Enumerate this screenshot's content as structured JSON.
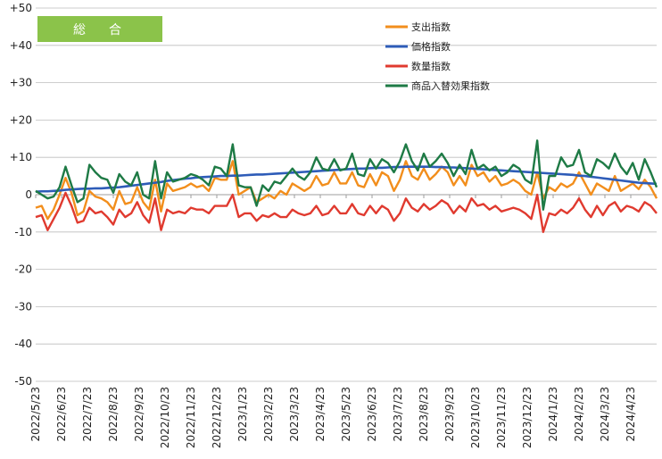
{
  "badge": {
    "label": "総　合",
    "color": "#8BC34A"
  },
  "chart_data": {
    "type": "line",
    "title": "",
    "xlabel": "",
    "ylabel": "",
    "ylim": [
      -50,
      50
    ],
    "grid": "horizontal",
    "legend_position": "top-right",
    "y_ticks": [
      {
        "value": 50,
        "label": "+50"
      },
      {
        "value": 40,
        "label": "+40"
      },
      {
        "value": 30,
        "label": "+30"
      },
      {
        "value": 20,
        "label": "+20"
      },
      {
        "value": 10,
        "label": "+10"
      },
      {
        "value": 0,
        "label": "0"
      },
      {
        "value": -10,
        "label": "-10"
      },
      {
        "value": -20,
        "label": "-20"
      },
      {
        "value": -30,
        "label": "-30"
      },
      {
        "value": -40,
        "label": "-40"
      },
      {
        "value": -50,
        "label": "-50"
      }
    ],
    "x_tick_labels": [
      "2022/5/23",
      "2022/6/23",
      "2022/7/23",
      "2022/8/23",
      "2022/9/23",
      "2022/10/23",
      "2022/11/23",
      "2022/12/23",
      "2023/1/23",
      "2023/2/23",
      "2023/3/23",
      "2023/4/23",
      "2023/5/23",
      "2023/6/23",
      "2023/7/23",
      "2023/8/23",
      "2023/9/23",
      "2023/10/23",
      "2023/11/23",
      "2023/12/23",
      "2024/1/23",
      "2024/2/23",
      "2024/3/23",
      "2024/4/23"
    ],
    "series": [
      {
        "name": "支出指数",
        "color": "#F28E1C",
        "values": [
          -3.5,
          -3,
          -6.5,
          -4,
          0,
          4.5,
          0.5,
          -5.5,
          -4.5,
          1,
          -0.5,
          -1,
          -2,
          -4,
          1,
          -2.5,
          -2,
          2,
          -2,
          -4,
          4,
          -4.5,
          3,
          1,
          1.5,
          2,
          3,
          2,
          2.5,
          1,
          4.5,
          4,
          4,
          9,
          0,
          1,
          2,
          -2,
          -1,
          0,
          -1,
          1,
          0,
          3,
          2,
          1,
          2,
          5,
          2.5,
          3,
          6,
          3,
          3,
          6,
          2.5,
          2,
          5.5,
          2.5,
          6,
          5,
          1,
          4,
          9,
          5,
          4,
          7,
          4,
          5.5,
          7.5,
          6,
          2.5,
          5,
          2.5,
          8,
          5,
          6,
          3.5,
          5,
          2.5,
          3,
          4,
          3,
          1,
          0,
          6,
          -1,
          2,
          1,
          3,
          2,
          3,
          6,
          3,
          0,
          3,
          2,
          1,
          5,
          1,
          2,
          3,
          1.5,
          4,
          2,
          -1
        ]
      },
      {
        "name": "価格指数",
        "color": "#2E5CB8",
        "values": [
          0.8,
          0.9,
          0.9,
          1,
          1.1,
          1.3,
          1.4,
          1.5,
          1.6,
          1.6,
          1.7,
          1.7,
          1.8,
          1.9,
          2,
          2.2,
          2.4,
          2.6,
          2.8,
          3,
          3.2,
          3.4,
          3.7,
          3.9,
          4.1,
          4.3,
          4.4,
          4.6,
          4.7,
          4.8,
          4.9,
          5,
          5,
          5.1,
          5.1,
          5.2,
          5.3,
          5.4,
          5.4,
          5.5,
          5.6,
          5.7,
          5.8,
          5.9,
          6,
          6.1,
          6.2,
          6.3,
          6.4,
          6.5,
          6.6,
          6.7,
          6.8,
          6.9,
          7,
          7,
          7.1,
          7.2,
          7.2,
          7.3,
          7.4,
          7.4,
          7.5,
          7.5,
          7.5,
          7.5,
          7.5,
          7.4,
          7.4,
          7.3,
          7.3,
          7.2,
          7.1,
          7,
          6.9,
          6.8,
          6.7,
          6.6,
          6.5,
          6.4,
          6.3,
          6.2,
          6.1,
          6,
          5.9,
          5.8,
          5.7,
          5.6,
          5.5,
          5.4,
          5.3,
          5.1,
          5,
          4.8,
          4.6,
          4.4,
          4.2,
          4,
          3.8,
          3.6,
          3.4,
          3.2,
          3.1,
          3,
          2.9
        ]
      },
      {
        "name": "数量指数",
        "color": "#E03A2F",
        "values": [
          -6,
          -5.5,
          -9.5,
          -6.5,
          -3.5,
          0.5,
          -3,
          -7.5,
          -7,
          -3.5,
          -5,
          -4.5,
          -6,
          -8,
          -4,
          -6,
          -5,
          -2,
          -5.5,
          -7.5,
          -1,
          -9.5,
          -4,
          -5,
          -4.5,
          -5,
          -3.5,
          -4,
          -4,
          -5,
          -3,
          -3,
          -3,
          0,
          -6,
          -5,
          -5,
          -7,
          -5.5,
          -6,
          -5,
          -6,
          -6,
          -4,
          -5,
          -5.5,
          -5,
          -3,
          -5.5,
          -5,
          -3,
          -5,
          -5,
          -2.5,
          -5,
          -5.5,
          -3,
          -5,
          -3,
          -4,
          -7,
          -5,
          -1,
          -3.5,
          -4.5,
          -2.5,
          -4,
          -3,
          -1.5,
          -2.5,
          -5,
          -3,
          -4.5,
          -1,
          -3,
          -2.5,
          -4,
          -3,
          -4.5,
          -4,
          -3.5,
          -4,
          -5,
          -6.5,
          0,
          -10,
          -5,
          -5.5,
          -4,
          -5,
          -3.5,
          -1,
          -4,
          -6,
          -3,
          -5.5,
          -3,
          -2,
          -4.5,
          -3,
          -3.5,
          -4.5,
          -2,
          -3,
          -5
        ]
      },
      {
        "name": "商品入替効果指数",
        "color": "#1E7A45",
        "values": [
          1,
          0,
          -1,
          -0.5,
          2,
          7.5,
          2.5,
          -2,
          -1,
          8,
          6,
          4.5,
          4,
          0.5,
          5.5,
          3.5,
          2.5,
          6,
          0,
          -1,
          9,
          -1,
          6,
          3.5,
          4,
          4.5,
          5.5,
          5,
          4,
          2.5,
          7.5,
          7,
          5,
          13.5,
          2.5,
          2,
          2,
          -3,
          2.5,
          1,
          3.5,
          3,
          5,
          7,
          5,
          4,
          6,
          10,
          7,
          6.5,
          9.5,
          6.5,
          7,
          11,
          5.5,
          5,
          9.5,
          7,
          9.5,
          8.5,
          6,
          9,
          13.5,
          9,
          6.5,
          11,
          7.5,
          9,
          11,
          8.5,
          5,
          8,
          5.5,
          12,
          7,
          8,
          6.5,
          7.5,
          5,
          6,
          8,
          7,
          4,
          3,
          14.5,
          -4,
          5,
          5,
          10,
          7.5,
          8,
          12,
          6,
          5,
          9.5,
          8.5,
          7,
          11,
          7.5,
          5.5,
          8.5,
          4,
          9.5,
          6,
          2
        ]
      }
    ]
  }
}
